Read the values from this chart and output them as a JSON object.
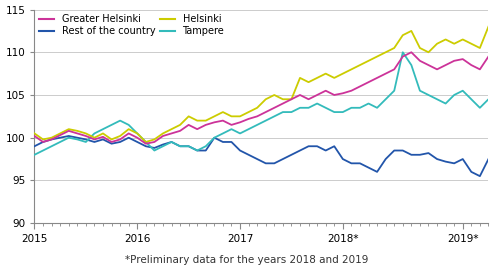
{
  "footnote": "*Preliminary data for the years 2018 and 2019",
  "ylim": [
    90,
    115
  ],
  "yticks": [
    90,
    95,
    100,
    105,
    110,
    115
  ],
  "background_color": "#ffffff",
  "grid_color": "#cccccc",
  "series": {
    "Greater Helsinki": {
      "color": "#cc3399",
      "linewidth": 1.3,
      "values": [
        100.2,
        99.5,
        99.8,
        100.3,
        100.8,
        100.5,
        100.2,
        99.8,
        100.1,
        99.5,
        99.8,
        100.5,
        100.0,
        99.3,
        99.5,
        100.2,
        100.5,
        100.8,
        101.5,
        101.0,
        101.5,
        101.8,
        102.0,
        101.5,
        101.8,
        102.2,
        102.5,
        103.0,
        103.5,
        104.0,
        104.5,
        105.0,
        104.5,
        105.0,
        105.5,
        105.0,
        105.2,
        105.5,
        106.0,
        106.5,
        107.0,
        107.5,
        108.0,
        109.5,
        110.0,
        109.0,
        108.5,
        108.0,
        108.5,
        109.0,
        109.2,
        108.5,
        108.0,
        109.5
      ]
    },
    "Helsinki": {
      "color": "#cccc00",
      "linewidth": 1.3,
      "values": [
        100.5,
        99.8,
        100.0,
        100.5,
        101.0,
        100.8,
        100.5,
        100.0,
        100.5,
        99.8,
        100.2,
        101.0,
        100.5,
        99.5,
        99.8,
        100.5,
        101.0,
        101.5,
        102.5,
        102.0,
        102.0,
        102.5,
        103.0,
        102.5,
        102.5,
        103.0,
        103.5,
        104.5,
        105.0,
        104.5,
        104.5,
        107.0,
        106.5,
        107.0,
        107.5,
        107.0,
        107.5,
        108.0,
        108.5,
        109.0,
        109.5,
        110.0,
        110.5,
        112.0,
        112.5,
        110.5,
        110.0,
        111.0,
        111.5,
        111.0,
        111.5,
        111.0,
        110.5,
        113.0
      ]
    },
    "Rest of the country": {
      "color": "#2255aa",
      "linewidth": 1.3,
      "values": [
        99.0,
        99.5,
        99.8,
        100.0,
        100.2,
        100.0,
        99.8,
        99.5,
        99.8,
        99.3,
        99.5,
        100.0,
        99.5,
        99.0,
        98.8,
        99.2,
        99.5,
        99.0,
        99.0,
        98.5,
        98.5,
        100.0,
        99.5,
        99.5,
        98.5,
        98.0,
        97.5,
        97.0,
        97.0,
        97.5,
        98.0,
        98.5,
        99.0,
        99.0,
        98.5,
        99.0,
        97.5,
        97.0,
        97.0,
        96.5,
        96.0,
        97.5,
        98.5,
        98.5,
        98.0,
        98.0,
        98.2,
        97.5,
        97.2,
        97.0,
        97.5,
        96.0,
        95.5,
        97.5
      ]
    },
    "Tampere": {
      "color": "#33bbbb",
      "linewidth": 1.3,
      "values": [
        98.0,
        98.5,
        99.0,
        99.5,
        100.0,
        99.8,
        99.5,
        100.5,
        101.0,
        101.5,
        102.0,
        101.5,
        100.5,
        99.5,
        98.5,
        99.0,
        99.5,
        99.0,
        99.0,
        98.5,
        99.0,
        100.0,
        100.5,
        101.0,
        100.5,
        101.0,
        101.5,
        102.0,
        102.5,
        103.0,
        103.0,
        103.5,
        103.5,
        104.0,
        103.5,
        103.0,
        103.0,
        103.5,
        103.5,
        104.0,
        103.5,
        104.5,
        105.5,
        110.0,
        108.5,
        105.5,
        105.0,
        104.5,
        104.0,
        105.0,
        105.5,
        104.5,
        103.5,
        104.5
      ]
    }
  },
  "n_months": 54,
  "xtick_positions": [
    0,
    12,
    24,
    36,
    50
  ],
  "xtick_labels": [
    "2015",
    "2016",
    "2017",
    "2018*",
    "2019*"
  ],
  "legend_order": [
    "Greater Helsinki",
    "Rest of the country",
    "Helsinki",
    "Tampere"
  ]
}
